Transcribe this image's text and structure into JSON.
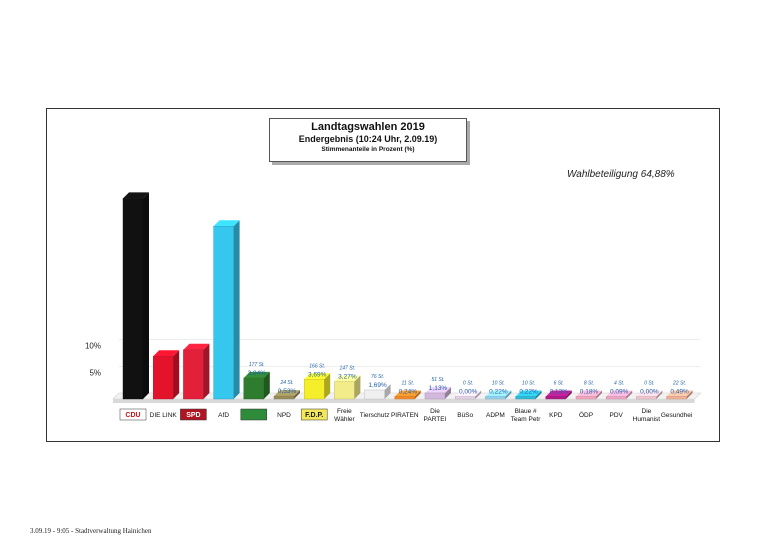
{
  "header": {
    "title": "Landtagswahlen 2019",
    "subtitle": "Endergebnis (10:24 Uhr, 2.09.19)",
    "caption": "Stimmenanteile in Prozent (%)"
  },
  "turnout_label": "Wahlbeteiligung 64,88%",
  "footer_text": "3.09.19  -  9:05  -  Stadtverwaltung Hainichen",
  "chart_data": {
    "type": "bar",
    "title": "Landtagswahlen 2019",
    "yticks": [
      "10%",
      "5%"
    ],
    "categories": [
      {
        "label": "CDU",
        "logo": true,
        "logo_color": "#cc1418",
        "logo_bg": "#ffffff"
      },
      {
        "label": "DIE LINK"
      },
      {
        "label": "SPD",
        "logo": true,
        "logo_color": "#ffffff",
        "logo_bg": "#b01524"
      },
      {
        "label": "AfD"
      },
      {
        "label": "",
        "logo": true,
        "logo_color": "#ffffff",
        "logo_bg": "#2e8b3a"
      },
      {
        "label": "NPD"
      },
      {
        "label": "F.D.P.",
        "logo": true,
        "logo_color": "#1a1a1a",
        "logo_bg": "#f2e85a"
      },
      {
        "label": "Freie\nWähler"
      },
      {
        "label": "Tierschutz"
      },
      {
        "label": "PIRATEN"
      },
      {
        "label": "Die\nPARTEI"
      },
      {
        "label": "BüSo"
      },
      {
        "label": "ADPM"
      },
      {
        "label": "Blaue #\nTeam Petr"
      },
      {
        "label": "KPD"
      },
      {
        "label": "ÖDP"
      },
      {
        "label": "PDV"
      },
      {
        "label": "Die\nHumanist"
      },
      {
        "label": "Gesundhei"
      }
    ],
    "values": [
      37.5,
      8.0,
      9.2,
      32.3,
      3.94,
      0.53,
      3.69,
      3.27,
      1.69,
      0.24,
      1.13,
      0.0,
      0.22,
      0.22,
      0.13,
      0.18,
      0.09,
      0.0,
      0.49
    ],
    "value_labels": [
      "",
      "",
      "",
      "",
      "3,94%",
      "0,53%",
      "3,69%",
      "3,27%",
      "1,69%",
      "0,24%",
      "1,13%",
      "0,00%",
      "0,22%",
      "0,22%",
      "0,13%",
      "0,18%",
      "0,09%",
      "0,00%",
      "0,49%"
    ],
    "vote_labels": [
      "",
      "",
      "",
      "",
      "177 St.",
      "24 St.",
      "166 St.",
      "147 St.",
      "76 St.",
      "11 St.",
      "51 St.",
      "0 St.",
      "10 St.",
      "10 St.",
      "6 St.",
      "8 St.",
      "4 St.",
      "0 St.",
      "22 St."
    ],
    "colors": [
      "#111111",
      "#e3132c",
      "#e3203a",
      "#35c7ee",
      "#2e7d2e",
      "#9a8f5a",
      "#f5ee2a",
      "#f3ec8a",
      "#f0f0f0",
      "#f58a2a",
      "#d2b8dc",
      "#e7d3e7",
      "#8fd2ee",
      "#2fbcd8",
      "#b01c8a",
      "#f4a6bf",
      "#f1a6c6",
      "#f4c6cf",
      "#f4b296"
    ]
  }
}
